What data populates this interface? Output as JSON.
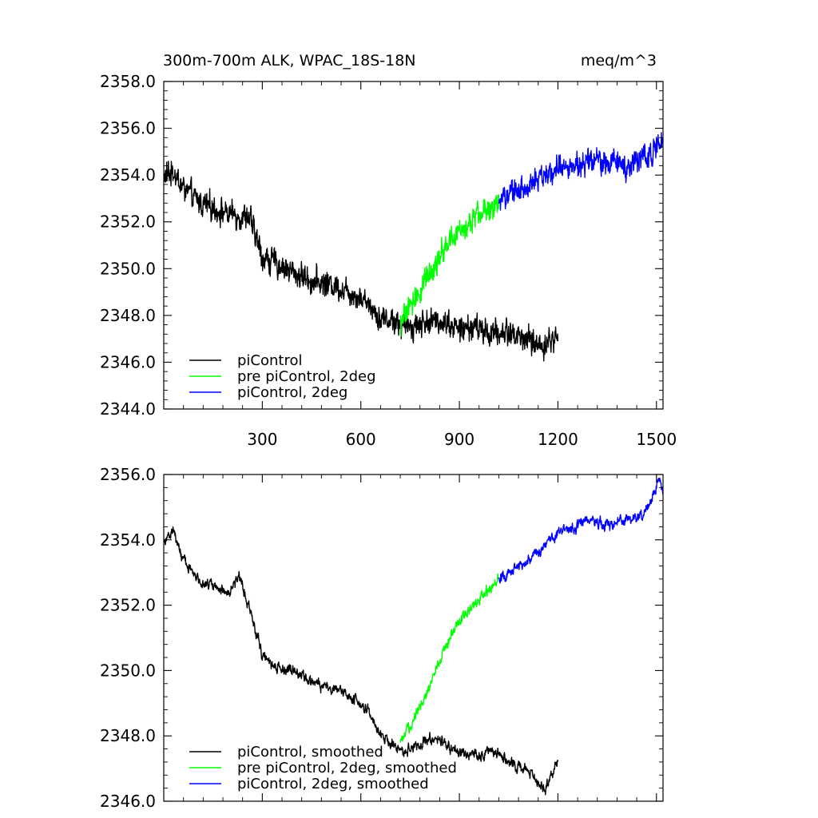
{
  "chart_data": [
    {
      "type": "line",
      "title": "300m-700m ALK, WPAC_18S-18N",
      "units_label": "meq/m^3",
      "xlim": [
        0,
        1520
      ],
      "ylim": [
        2344.0,
        2358.0
      ],
      "x_ticks": [
        300,
        600,
        900,
        1200,
        1500
      ],
      "x_tick_labels": [
        "300",
        "600",
        "900",
        "1200",
        "1500"
      ],
      "y_ticks": [
        2344.0,
        2346.0,
        2348.0,
        2350.0,
        2352.0,
        2354.0,
        2356.0,
        2358.0
      ],
      "y_tick_labels": [
        "2344.0",
        "2346.0",
        "2348.0",
        "2350.0",
        "2352.0",
        "2354.0",
        "2356.0",
        "2358.0"
      ],
      "legend_position": "bottom-left",
      "noise_amplitude": 0.45,
      "series": [
        {
          "name": "piControl",
          "color": "#000000",
          "anchors": [
            [
              0,
              2353.9
            ],
            [
              30,
              2354.2
            ],
            [
              50,
              2353.6
            ],
            [
              100,
              2352.9
            ],
            [
              150,
              2352.6
            ],
            [
              200,
              2352.3
            ],
            [
              260,
              2352.2
            ],
            [
              300,
              2350.5
            ],
            [
              330,
              2350.3
            ],
            [
              400,
              2349.8
            ],
            [
              450,
              2349.5
            ],
            [
              520,
              2349.3
            ],
            [
              570,
              2349.0
            ],
            [
              620,
              2348.6
            ],
            [
              660,
              2347.9
            ],
            [
              700,
              2347.8
            ],
            [
              730,
              2347.5
            ],
            [
              800,
              2347.7
            ],
            [
              850,
              2347.8
            ],
            [
              900,
              2347.4
            ],
            [
              950,
              2347.5
            ],
            [
              1000,
              2347.2
            ],
            [
              1050,
              2347.3
            ],
            [
              1100,
              2347.0
            ],
            [
              1150,
              2346.7
            ],
            [
              1200,
              2347.1
            ]
          ]
        },
        {
          "name": "pre piControl, 2deg",
          "color": "#00ff00",
          "anchors": [
            [
              720,
              2347.6
            ],
            [
              760,
              2348.6
            ],
            [
              800,
              2349.6
            ],
            [
              850,
              2350.8
            ],
            [
              900,
              2351.6
            ],
            [
              960,
              2352.3
            ],
            [
              1020,
              2352.9
            ]
          ]
        },
        {
          "name": "piControl, 2deg",
          "color": "#0000ff",
          "anchors": [
            [
              1020,
              2352.9
            ],
            [
              1100,
              2353.5
            ],
            [
              1200,
              2354.3
            ],
            [
              1300,
              2354.6
            ],
            [
              1400,
              2354.4
            ],
            [
              1470,
              2354.8
            ],
            [
              1520,
              2355.5
            ]
          ]
        }
      ]
    },
    {
      "type": "line",
      "title": "",
      "xlim": [
        0,
        1520
      ],
      "ylim": [
        2346.0,
        2356.0
      ],
      "x_ticks": [
        300,
        600,
        900,
        1200,
        1500
      ],
      "x_tick_labels": [],
      "y_ticks": [
        2346.0,
        2348.0,
        2350.0,
        2352.0,
        2354.0,
        2356.0
      ],
      "y_tick_labels": [
        "2346.0",
        "2348.0",
        "2350.0",
        "2352.0",
        "2354.0",
        "2356.0"
      ],
      "legend_position": "bottom-left",
      "noise_amplitude": 0.2,
      "series": [
        {
          "name": "piControl, smoothed",
          "color": "#000000",
          "anchors": [
            [
              0,
              2354.0
            ],
            [
              30,
              2354.3
            ],
            [
              50,
              2353.6
            ],
            [
              100,
              2352.8
            ],
            [
              150,
              2352.6
            ],
            [
              200,
              2352.4
            ],
            [
              230,
              2352.9
            ],
            [
              260,
              2352.0
            ],
            [
              300,
              2350.5
            ],
            [
              340,
              2350.1
            ],
            [
              400,
              2350.0
            ],
            [
              450,
              2349.6
            ],
            [
              500,
              2349.5
            ],
            [
              560,
              2349.3
            ],
            [
              620,
              2348.8
            ],
            [
              660,
              2348.0
            ],
            [
              700,
              2347.7
            ],
            [
              730,
              2347.5
            ],
            [
              800,
              2347.9
            ],
            [
              850,
              2347.8
            ],
            [
              900,
              2347.5
            ],
            [
              950,
              2347.4
            ],
            [
              1000,
              2347.6
            ],
            [
              1050,
              2347.2
            ],
            [
              1100,
              2347.0
            ],
            [
              1160,
              2346.4
            ],
            [
              1200,
              2347.2
            ]
          ]
        },
        {
          "name": "pre piControl, 2deg, smoothed",
          "color": "#00ff00",
          "anchors": [
            [
              720,
              2347.7
            ],
            [
              760,
              2348.5
            ],
            [
              800,
              2349.3
            ],
            [
              850,
              2350.6
            ],
            [
              900,
              2351.5
            ],
            [
              960,
              2352.2
            ],
            [
              1020,
              2352.8
            ]
          ]
        },
        {
          "name": "piControl, 2deg, smoothed",
          "color": "#0000ff",
          "anchors": [
            [
              1020,
              2352.8
            ],
            [
              1100,
              2353.3
            ],
            [
              1200,
              2354.2
            ],
            [
              1300,
              2354.6
            ],
            [
              1350,
              2354.4
            ],
            [
              1400,
              2354.6
            ],
            [
              1460,
              2354.8
            ],
            [
              1510,
              2355.9
            ],
            [
              1520,
              2355.3
            ]
          ]
        }
      ]
    }
  ]
}
